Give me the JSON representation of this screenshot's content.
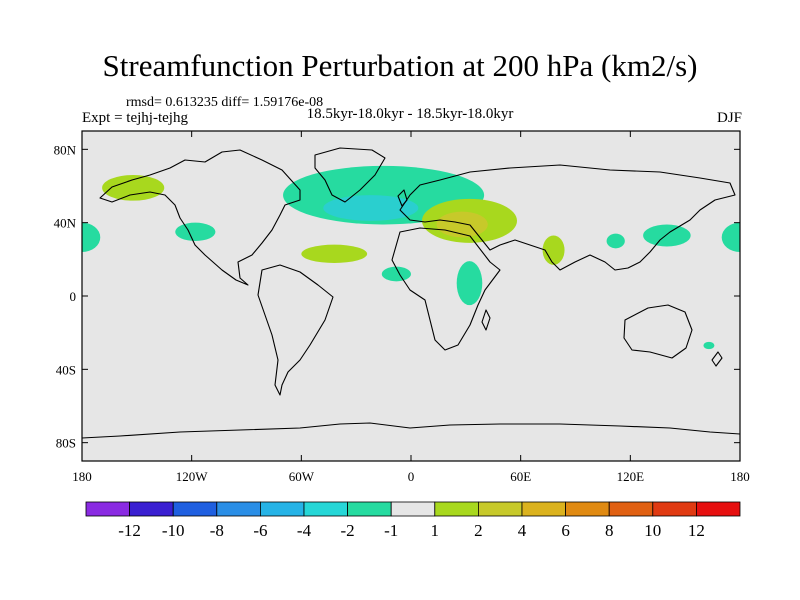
{
  "header": {
    "title": "Streamfunction Perturbation at 200 hPa (km2/s)",
    "stats": "rmsd= 0.613235 diff= 1.59176e-08",
    "experiment": "Expt = tejhj-tejhg",
    "period": "18.5kyr-18.0kyr - 18.5kyr-18.0kyr",
    "season": "DJF"
  },
  "colors": {
    "background_field": "#e6e6e6",
    "positive_1_2": "#a8d81e",
    "positive_2_4": "#c7c92a",
    "negative_1_2": "#26dba0",
    "negative_2_4": "#2acfcf"
  },
  "chart_data": {
    "type": "heatmap",
    "projection": "cylindrical-equidistant",
    "xlim": [
      -180,
      180
    ],
    "ylim": [
      -90,
      90
    ],
    "x_ticks": [
      "180",
      "120W",
      "60W",
      "0",
      "60E",
      "120E",
      "180"
    ],
    "y_ticks": [
      "80N",
      "40N",
      "0",
      "40S",
      "80S"
    ],
    "colorbar": {
      "levels": [
        "-12",
        "-10",
        "-8",
        "-6",
        "-4",
        "-2",
        "-1",
        "1",
        "2",
        "4",
        "6",
        "8",
        "10",
        "12"
      ],
      "colors": [
        "#8a2be2",
        "#3a1fd1",
        "#1f5fe0",
        "#2a8ee6",
        "#26b3e6",
        "#26d7d7",
        "#26dba0",
        "#e6e6e6",
        "#a8d81e",
        "#c7c92a",
        "#dbb21e",
        "#e08a12",
        "#e06012",
        "#e03a12",
        "#e60f0f"
      ]
    },
    "contour_regions": [
      {
        "label": "north-pacific",
        "lon": -152,
        "lat": 59,
        "rlon": 17,
        "rlat": 7,
        "value": 1.5
      },
      {
        "label": "east-pacific",
        "lon": -180,
        "lat": 32,
        "rlon": 10,
        "rlat": 8,
        "value": -1.5
      },
      {
        "label": "west-pacific-east",
        "lon": 180,
        "lat": 32,
        "rlon": 10,
        "rlat": 8,
        "value": -1.5
      },
      {
        "label": "southern-usa",
        "lon": -118,
        "lat": 35,
        "rlon": 11,
        "rlat": 5,
        "value": -1.5
      },
      {
        "label": "north-atlantic",
        "lon": -15,
        "lat": 55,
        "rlon": 55,
        "rlat": 16,
        "value": -1.5
      },
      {
        "label": "north-atlantic-core",
        "lon": -22,
        "lat": 48,
        "rlon": 26,
        "rlat": 7,
        "value": -2.5
      },
      {
        "label": "subtropical-atlantic",
        "lon": -42,
        "lat": 23,
        "rlon": 18,
        "rlat": 5,
        "value": 1.5
      },
      {
        "label": "west-africa",
        "lon": -8,
        "lat": 12,
        "rlon": 8,
        "rlat": 4,
        "value": -1.5
      },
      {
        "label": "mediterranean-asia",
        "lon": 32,
        "lat": 41,
        "rlon": 26,
        "rlat": 12,
        "value": 1.5
      },
      {
        "label": "mediterranean-core",
        "lon": 28,
        "lat": 39,
        "rlon": 14,
        "rlat": 7,
        "value": 3
      },
      {
        "label": "east-africa",
        "lon": 32,
        "lat": 7,
        "rlon": 7,
        "rlat": 12,
        "value": -1.5
      },
      {
        "label": "india",
        "lon": 78,
        "lat": 25,
        "rlon": 6,
        "rlat": 8,
        "value": 1.5
      },
      {
        "label": "china",
        "lon": 112,
        "lat": 30,
        "rlon": 5,
        "rlat": 4,
        "value": -1.5
      },
      {
        "label": "japan",
        "lon": 140,
        "lat": 33,
        "rlon": 13,
        "rlat": 6,
        "value": -1.5
      },
      {
        "label": "south-pacific",
        "lon": 163,
        "lat": -27,
        "rlon": 3,
        "rlat": 2,
        "value": -1.5
      }
    ]
  }
}
